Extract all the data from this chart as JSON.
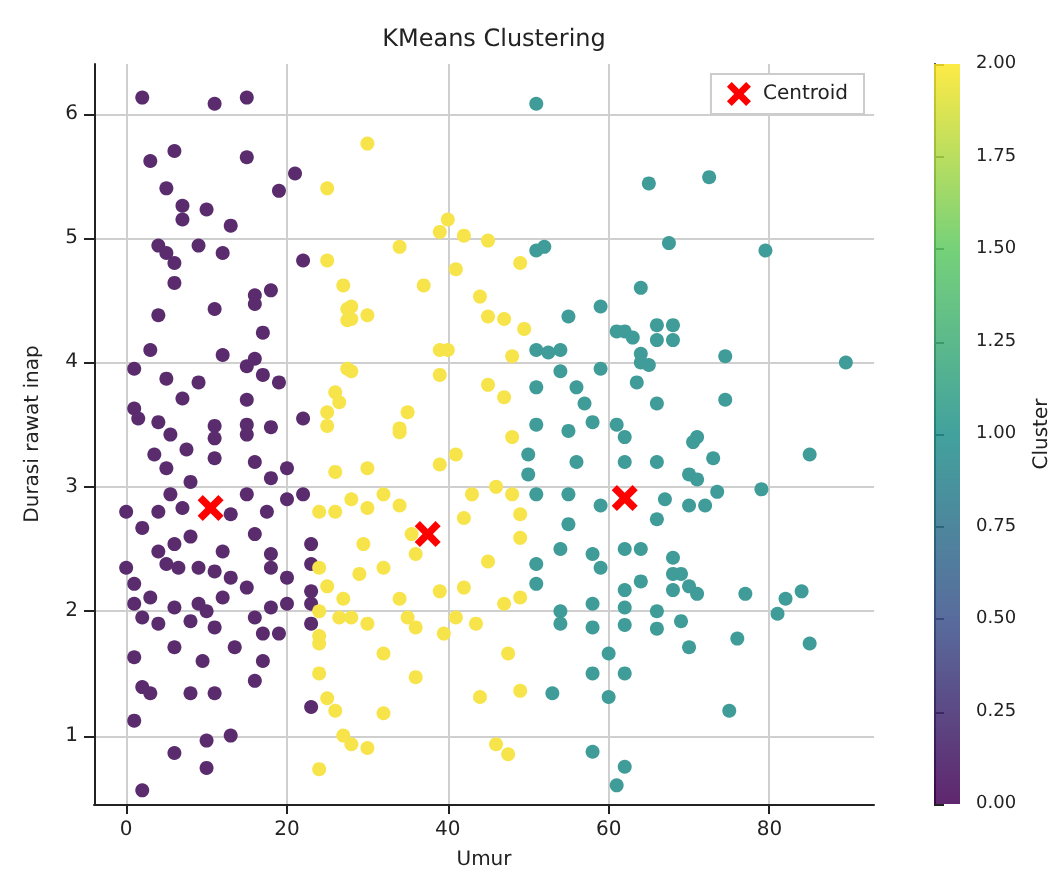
{
  "chart_data": {
    "type": "scatter",
    "title": "KMeans Clustering",
    "xlabel": "Umur",
    "ylabel": "Durasi rawat inap",
    "clabel": "Cluster",
    "xlim": [
      -4,
      93
    ],
    "xticks": [
      0,
      20,
      40,
      60,
      80
    ],
    "ylim": [
      0.45,
      6.4
    ],
    "yticks": [
      1,
      2,
      3,
      4,
      5,
      6
    ],
    "clim": [
      0,
      2
    ],
    "cticks": [
      {
        "value": 0,
        "label": "0.00"
      },
      {
        "value": 0.25,
        "label": "0.25"
      },
      {
        "value": 0.5,
        "label": "0.50"
      },
      {
        "value": 0.75,
        "label": "0.75"
      },
      {
        "value": 1,
        "label": "1.00"
      },
      {
        "value": 1.25,
        "label": "1.25"
      },
      {
        "value": 1.5,
        "label": "1.50"
      },
      {
        "value": 1.75,
        "label": "1.75"
      },
      {
        "value": 2,
        "label": "2.00"
      }
    ],
    "grid": true,
    "legend": "top right",
    "marker": "circle",
    "series": [
      {
        "color": "#5a2c6e",
        "x": [
          2,
          11,
          15,
          3,
          6,
          15,
          5,
          7,
          7,
          10,
          13,
          19,
          21,
          4,
          5,
          6,
          9,
          12,
          6,
          22,
          4,
          11,
          16,
          18,
          16,
          17,
          3,
          12,
          16,
          1,
          5,
          9,
          15,
          17,
          19,
          7,
          1,
          15,
          1.5,
          4,
          11,
          15,
          18,
          22,
          0,
          2,
          4,
          5.5,
          7,
          8,
          5,
          3.5,
          5.5,
          7.5,
          11,
          11,
          15,
          16,
          20,
          18,
          15,
          17.5,
          22,
          20,
          13,
          8,
          6,
          4,
          12,
          16,
          18,
          23,
          23,
          0,
          5,
          6.5,
          9,
          11,
          15,
          13,
          18,
          20,
          1,
          3,
          1,
          2,
          4,
          6,
          9,
          8,
          10,
          12,
          11,
          16,
          18,
          19,
          17,
          20,
          23,
          23,
          23,
          13.5,
          17,
          9.5,
          6,
          1,
          2,
          3,
          8,
          11,
          16,
          1,
          10,
          13,
          6,
          10,
          2,
          23
        ],
        "values": [
          6.13,
          6.08,
          6.13,
          5.62,
          5.7,
          5.65,
          5.4,
          5.26,
          5.15,
          5.23,
          5.1,
          5.38,
          5.52,
          4.94,
          4.88,
          4.8,
          4.94,
          4.88,
          4.64,
          4.82,
          4.38,
          4.43,
          4.54,
          4.58,
          4.47,
          4.24,
          4.1,
          4.06,
          4.03,
          3.95,
          3.87,
          3.84,
          3.97,
          3.9,
          3.84,
          3.71,
          3.63,
          3.7,
          3.55,
          3.52,
          3.49,
          3.5,
          3.48,
          3.55,
          2.8,
          2.67,
          2.8,
          2.94,
          2.83,
          3.04,
          3.15,
          3.26,
          3.42,
          3.3,
          3.23,
          3.39,
          3.42,
          3.2,
          3.15,
          3.07,
          2.94,
          2.8,
          2.94,
          2.9,
          2.78,
          2.6,
          2.54,
          2.48,
          2.48,
          2.62,
          2.46,
          2.54,
          2.38,
          2.35,
          2.38,
          2.35,
          2.35,
          2.32,
          2.19,
          2.27,
          2.35,
          2.27,
          2.22,
          2.11,
          2.06,
          1.95,
          1.9,
          2.03,
          2.06,
          1.92,
          2.0,
          2.11,
          1.87,
          1.95,
          2.03,
          1.82,
          1.82,
          2.06,
          2.16,
          1.9,
          2.06,
          1.71,
          1.6,
          1.6,
          1.71,
          1.63,
          1.39,
          1.34,
          1.34,
          1.34,
          1.44,
          1.12,
          0.96,
          1.0,
          0.86,
          0.74,
          0.56,
          1.23
        ]
      },
      {
        "color": "#f7e44a",
        "x": [
          25,
          25,
          27,
          27.5,
          27.5,
          27.5,
          26,
          26.5,
          25,
          25,
          30,
          40,
          39,
          42,
          45,
          34,
          41,
          49,
          37,
          44,
          45,
          47,
          49.5,
          28,
          28,
          30,
          39,
          40,
          39,
          48,
          45,
          47,
          35,
          34,
          28,
          24,
          26,
          26,
          24,
          25,
          27,
          24,
          26.5,
          24,
          24,
          24,
          25,
          26,
          27,
          24,
          34,
          30,
          39,
          41,
          48,
          28,
          32,
          34,
          30,
          35.5,
          43,
          46,
          48,
          49,
          42,
          49,
          29.5,
          29,
          32,
          36,
          45,
          39,
          42,
          47,
          49,
          28,
          30,
          34,
          35,
          36,
          39.5,
          41,
          43.5,
          47.5,
          32,
          36,
          44,
          49,
          32,
          28,
          30,
          46,
          47.5
        ],
        "values": [
          5.4,
          4.82,
          4.62,
          4.43,
          4.34,
          3.95,
          3.76,
          3.68,
          3.6,
          3.49,
          5.76,
          5.15,
          5.05,
          5.02,
          4.98,
          4.93,
          4.75,
          4.8,
          4.62,
          4.53,
          4.37,
          4.35,
          4.27,
          4.45,
          4.35,
          4.38,
          4.1,
          4.1,
          3.9,
          4.05,
          3.82,
          3.72,
          3.6,
          3.47,
          3.93,
          2.8,
          2.8,
          3.12,
          2.35,
          2.2,
          2.1,
          2.0,
          1.95,
          1.8,
          1.74,
          1.5,
          1.3,
          1.2,
          1.0,
          0.73,
          3.44,
          3.15,
          3.18,
          3.26,
          3.4,
          2.9,
          2.94,
          2.85,
          2.83,
          2.62,
          2.94,
          3.0,
          2.94,
          2.78,
          2.75,
          2.59,
          2.54,
          2.3,
          2.35,
          2.46,
          2.4,
          2.16,
          2.19,
          2.06,
          2.11,
          1.95,
          1.9,
          2.1,
          1.95,
          1.87,
          1.82,
          1.95,
          1.9,
          1.66,
          1.66,
          1.47,
          1.31,
          1.36,
          1.18,
          0.93,
          0.9,
          0.93,
          0.85
        ]
      },
      {
        "color": "#3f9c98",
        "x": [
          51,
          51,
          52,
          55,
          59,
          61,
          51,
          52.5,
          54,
          54,
          59,
          51,
          56,
          57,
          51,
          55,
          58,
          61,
          65,
          72.5,
          67.5,
          79.5,
          64,
          66,
          68,
          62,
          63,
          66,
          68,
          64,
          64,
          65,
          74.5,
          89.5,
          63.5,
          66,
          74.5,
          71,
          50,
          50,
          56,
          62,
          62,
          51,
          55,
          55,
          59,
          54,
          58,
          59,
          51,
          51,
          64,
          54,
          58,
          62,
          54,
          58,
          60,
          58,
          53,
          60,
          58,
          61,
          70.5,
          73,
          85,
          66,
          70,
          71,
          73.5,
          79,
          67,
          70,
          72,
          66,
          62,
          68,
          68,
          69,
          68,
          70,
          71,
          64,
          62,
          77,
          82,
          84,
          81,
          66,
          69,
          62,
          66,
          76,
          85,
          70,
          62,
          75,
          62
        ],
        "values": [
          6.08,
          4.9,
          4.93,
          4.37,
          4.45,
          4.25,
          4.1,
          4.08,
          4.1,
          3.93,
          3.95,
          3.8,
          3.8,
          3.67,
          3.5,
          3.45,
          3.52,
          3.5,
          5.44,
          5.49,
          4.96,
          4.9,
          4.6,
          4.3,
          4.3,
          4.25,
          4.2,
          4.18,
          4.18,
          4.07,
          4.0,
          3.98,
          4.05,
          4.0,
          3.84,
          3.67,
          3.7,
          3.4,
          3.26,
          3.1,
          3.2,
          3.4,
          3.2,
          2.94,
          2.94,
          2.7,
          2.85,
          2.5,
          2.46,
          2.35,
          2.38,
          2.22,
          2.5,
          2.0,
          2.06,
          2.03,
          1.9,
          1.87,
          1.66,
          1.5,
          1.34,
          1.31,
          0.87,
          0.6,
          3.36,
          3.23,
          3.26,
          3.2,
          3.1,
          3.06,
          2.96,
          2.98,
          2.9,
          2.85,
          2.85,
          2.74,
          2.5,
          2.43,
          2.3,
          2.3,
          2.17,
          2.2,
          2.14,
          2.24,
          2.17,
          2.14,
          2.1,
          2.16,
          1.98,
          2.0,
          1.92,
          1.89,
          1.86,
          1.78,
          1.74,
          1.71,
          1.5,
          1.2,
          0.75
        ]
      },
      {
        "name": "Centroid",
        "color": "#ff0000",
        "marker": "cross",
        "x": [
          10.5,
          37.5,
          62
        ],
        "values": [
          2.83,
          2.62,
          2.91
        ]
      }
    ]
  }
}
